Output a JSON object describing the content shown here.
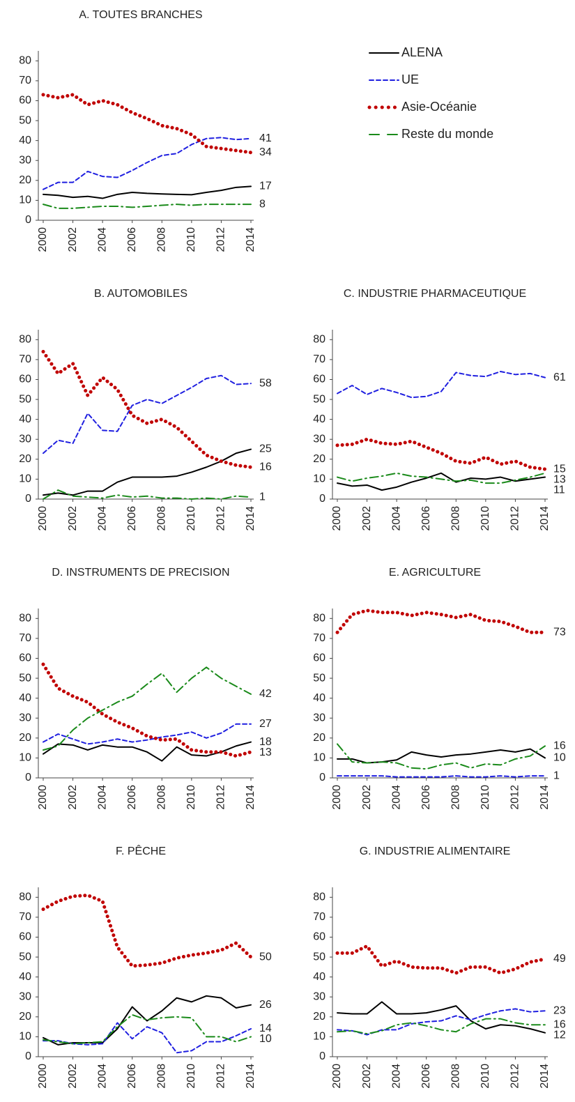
{
  "chart_data": [
    {
      "type": "line",
      "title": "A. TOUTES BRANCHES",
      "legend": "top-right",
      "x": [
        2000,
        2001,
        2002,
        2003,
        2004,
        2005,
        2006,
        2007,
        2008,
        2009,
        2010,
        2011,
        2012,
        2013,
        2014
      ],
      "xlim": [
        2000,
        2014
      ],
      "xticks": [
        2000,
        2002,
        2004,
        2006,
        2008,
        2010,
        2012,
        2014
      ],
      "ylim": [
        0,
        85
      ],
      "yticks": [
        0,
        10,
        20,
        30,
        40,
        50,
        60,
        70,
        80
      ],
      "series": [
        {
          "name": "ALENA",
          "color": "#000000",
          "style": "solid",
          "values": [
            13,
            12.5,
            11.5,
            12,
            11,
            13,
            14,
            13.5,
            13.2,
            13,
            12.8,
            14,
            15,
            16.5,
            17
          ]
        },
        {
          "name": "UE",
          "color": "#1f1fe0",
          "style": "dashed",
          "values": [
            15.5,
            19,
            19,
            24.5,
            22,
            21.5,
            25,
            29,
            32.5,
            33.5,
            38,
            41,
            41.5,
            40.5,
            41
          ]
        },
        {
          "name": "Asie-Océanie",
          "color": "#c00000",
          "style": "dotted",
          "values": [
            63,
            61.5,
            63,
            58,
            60,
            58,
            54,
            51,
            47.5,
            46,
            43,
            37,
            36,
            35,
            34
          ]
        },
        {
          "name": "Reste du monde",
          "color": "#1a8a1a",
          "style": "dashdot",
          "values": [
            8,
            6,
            6,
            6.5,
            7,
            7,
            6.5,
            7,
            7.5,
            8,
            7.5,
            8,
            8,
            8,
            8
          ]
        }
      ]
    },
    {
      "type": "line",
      "title": "B. AUTOMOBILES",
      "x": [
        2000,
        2001,
        2002,
        2003,
        2004,
        2005,
        2006,
        2007,
        2008,
        2009,
        2010,
        2011,
        2012,
        2013,
        2014
      ],
      "xlim": [
        2000,
        2014
      ],
      "xticks": [
        2000,
        2002,
        2004,
        2006,
        2008,
        2010,
        2012,
        2014
      ],
      "ylim": [
        0,
        85
      ],
      "yticks": [
        0,
        10,
        20,
        30,
        40,
        50,
        60,
        70,
        80
      ],
      "series": [
        {
          "color": "#000000",
          "style": "solid",
          "values": [
            2,
            3,
            2,
            4,
            4,
            8.5,
            11,
            11,
            11,
            11.5,
            13.5,
            16,
            19,
            23,
            25
          ]
        },
        {
          "color": "#1f1fe0",
          "style": "dashed",
          "values": [
            23,
            29.5,
            28,
            43,
            34.5,
            34,
            47,
            50,
            48,
            52,
            56,
            60.5,
            62,
            57.5,
            58
          ]
        },
        {
          "color": "#c00000",
          "style": "dotted",
          "values": [
            74,
            63,
            68,
            52,
            61,
            55,
            42,
            38,
            40,
            36,
            29,
            22,
            19,
            17,
            16
          ]
        },
        {
          "color": "#1a8a1a",
          "style": "dashdot",
          "values": [
            0,
            4.5,
            1.5,
            1,
            0.5,
            2,
            1,
            1.5,
            0.5,
            0.5,
            0,
            0.5,
            0,
            1.5,
            1
          ]
        }
      ]
    },
    {
      "type": "line",
      "title": "C. INDUSTRIE PHARMACEUTIQUE",
      "x": [
        2000,
        2001,
        2002,
        2003,
        2004,
        2005,
        2006,
        2007,
        2008,
        2009,
        2010,
        2011,
        2012,
        2013,
        2014
      ],
      "xlim": [
        2000,
        2014
      ],
      "xticks": [
        2000,
        2002,
        2004,
        2006,
        2008,
        2010,
        2012,
        2014
      ],
      "ylim": [
        0,
        85
      ],
      "yticks": [
        0,
        10,
        20,
        30,
        40,
        50,
        60,
        70,
        80
      ],
      "series": [
        {
          "color": "#000000",
          "style": "solid",
          "values": [
            8,
            6.5,
            7,
            4.5,
            6,
            8.5,
            10.5,
            13,
            8.5,
            10.5,
            10,
            11,
            9,
            10,
            11
          ]
        },
        {
          "color": "#1f1fe0",
          "style": "dashed",
          "values": [
            53,
            57,
            52.5,
            55.5,
            53.5,
            51,
            51.5,
            54,
            63.5,
            62,
            61.5,
            64,
            62.5,
            63,
            61
          ]
        },
        {
          "color": "#c00000",
          "style": "dotted",
          "values": [
            27,
            27.5,
            30,
            28,
            27.5,
            29,
            26,
            23,
            19,
            18,
            21,
            17.5,
            19,
            16,
            15
          ]
        },
        {
          "color": "#1a8a1a",
          "style": "dashdot",
          "values": [
            11,
            9,
            10.5,
            11.5,
            13,
            11.5,
            11,
            10,
            9,
            9.5,
            8,
            8,
            9.5,
            11,
            13
          ]
        }
      ]
    },
    {
      "type": "line",
      "title": "D. INSTRUMENTS DE PRECISION",
      "x": [
        2000,
        2001,
        2002,
        2003,
        2004,
        2005,
        2006,
        2007,
        2008,
        2009,
        2010,
        2011,
        2012,
        2013,
        2014
      ],
      "xlim": [
        2000,
        2014
      ],
      "xticks": [
        2000,
        2002,
        2004,
        2006,
        2008,
        2010,
        2012,
        2014
      ],
      "ylim": [
        0,
        85
      ],
      "yticks": [
        0,
        10,
        20,
        30,
        40,
        50,
        60,
        70,
        80
      ],
      "series": [
        {
          "color": "#000000",
          "style": "solid",
          "values": [
            12,
            17,
            16.5,
            14,
            16.5,
            15.5,
            15.5,
            13,
            8.5,
            15.5,
            11.5,
            11,
            13,
            16,
            18
          ]
        },
        {
          "color": "#1f1fe0",
          "style": "dashed",
          "values": [
            18,
            22,
            19.5,
            17,
            18,
            19.5,
            18,
            19,
            20.5,
            21.5,
            23,
            20,
            22.5,
            27,
            27
          ]
        },
        {
          "color": "#c00000",
          "style": "dotted",
          "values": [
            57,
            45,
            41,
            38,
            32,
            28,
            25,
            21,
            19,
            19.5,
            14,
            13,
            13,
            11,
            13
          ]
        },
        {
          "color": "#1a8a1a",
          "style": "dashdot",
          "values": [
            14,
            16,
            24,
            30,
            34,
            38,
            41,
            47,
            52.5,
            43,
            50,
            55.5,
            50,
            46,
            42
          ]
        }
      ]
    },
    {
      "type": "line",
      "title": "E. AGRICULTURE",
      "x": [
        2000,
        2001,
        2002,
        2003,
        2004,
        2005,
        2006,
        2007,
        2008,
        2009,
        2010,
        2011,
        2012,
        2013,
        2014
      ],
      "xlim": [
        2000,
        2014
      ],
      "xticks": [
        2000,
        2002,
        2004,
        2006,
        2008,
        2010,
        2012,
        2014
      ],
      "ylim": [
        0,
        85
      ],
      "yticks": [
        0,
        10,
        20,
        30,
        40,
        50,
        60,
        70,
        80
      ],
      "series": [
        {
          "color": "#000000",
          "style": "solid",
          "values": [
            9.5,
            9.5,
            7.5,
            8,
            9,
            13,
            11.5,
            10.5,
            11.5,
            12,
            13,
            14,
            13,
            14.5,
            10
          ]
        },
        {
          "color": "#1f1fe0",
          "style": "dashed",
          "values": [
            1,
            1,
            1,
            1,
            0.5,
            0.5,
            0.5,
            0.5,
            1,
            0.5,
            0.5,
            1,
            0.5,
            1,
            1
          ]
        },
        {
          "color": "#c00000",
          "style": "dotted",
          "values": [
            73,
            82,
            84,
            83,
            83,
            81.5,
            83,
            82,
            80.5,
            82,
            79,
            78.5,
            76,
            73,
            73
          ]
        },
        {
          "color": "#1a8a1a",
          "style": "dashdot",
          "values": [
            17,
            8,
            7.5,
            8,
            7.5,
            5,
            4.5,
            6.5,
            7.5,
            5,
            7,
            6.5,
            9.5,
            11,
            16
          ]
        }
      ]
    },
    {
      "type": "line",
      "title": "F. PÊCHE",
      "x": [
        2000,
        2001,
        2002,
        2003,
        2004,
        2005,
        2006,
        2007,
        2008,
        2009,
        2010,
        2011,
        2012,
        2013,
        2014
      ],
      "xlim": [
        2000,
        2014
      ],
      "xticks": [
        2000,
        2002,
        2004,
        2006,
        2008,
        2010,
        2012,
        2014
      ],
      "ylim": [
        0,
        85
      ],
      "yticks": [
        0,
        10,
        20,
        30,
        40,
        50,
        60,
        70,
        80
      ],
      "series": [
        {
          "color": "#000000",
          "style": "solid",
          "values": [
            9.5,
            6,
            7,
            7,
            7,
            14,
            25,
            18,
            23,
            29.5,
            27.5,
            30.5,
            29.5,
            24.5,
            26
          ]
        },
        {
          "color": "#1f1fe0",
          "style": "dashed",
          "values": [
            8,
            8,
            6.5,
            6,
            6.5,
            17,
            9,
            15,
            12,
            2,
            3,
            7.5,
            7.5,
            10.5,
            14
          ]
        },
        {
          "color": "#c00000",
          "style": "dotted",
          "values": [
            74,
            78,
            80.5,
            81,
            78,
            55,
            45.5,
            46,
            47,
            49.5,
            51,
            52,
            53.5,
            57,
            50
          ]
        },
        {
          "color": "#1a8a1a",
          "style": "dashdot",
          "values": [
            8.5,
            7.5,
            6.5,
            7,
            7.5,
            15,
            21,
            18.5,
            19.5,
            20,
            19.5,
            10,
            10,
            7.5,
            10
          ]
        }
      ]
    },
    {
      "type": "line",
      "title": "G. INDUSTRIE ALIMENTAIRE",
      "x": [
        2000,
        2001,
        2002,
        2003,
        2004,
        2005,
        2006,
        2007,
        2008,
        2009,
        2010,
        2011,
        2012,
        2013,
        2014
      ],
      "xlim": [
        2000,
        2014
      ],
      "xticks": [
        2000,
        2002,
        2004,
        2006,
        2008,
        2010,
        2012,
        2014
      ],
      "ylim": [
        0,
        85
      ],
      "yticks": [
        0,
        10,
        20,
        30,
        40,
        50,
        60,
        70,
        80
      ],
      "series": [
        {
          "color": "#000000",
          "style": "solid",
          "values": [
            22,
            21.5,
            21.5,
            27.5,
            21.5,
            21.5,
            22,
            23.5,
            25.5,
            18,
            14,
            16,
            15.5,
            14,
            12
          ]
        },
        {
          "color": "#1f1fe0",
          "style": "dashed",
          "values": [
            13.5,
            13,
            11,
            13.5,
            13.5,
            16.5,
            17.5,
            18,
            20.5,
            18.5,
            21,
            23,
            24,
            22.5,
            23
          ]
        },
        {
          "color": "#c00000",
          "style": "dotted",
          "values": [
            52,
            52,
            55.5,
            45.5,
            48,
            45,
            44.5,
            44.5,
            42,
            45,
            45,
            42,
            44,
            47.5,
            49
          ]
        },
        {
          "color": "#1a8a1a",
          "style": "dashdot",
          "values": [
            12.5,
            13,
            11.5,
            13,
            16,
            17,
            15.5,
            13.5,
            12.5,
            16.5,
            19,
            19,
            17,
            16,
            16
          ]
        }
      ]
    }
  ]
}
